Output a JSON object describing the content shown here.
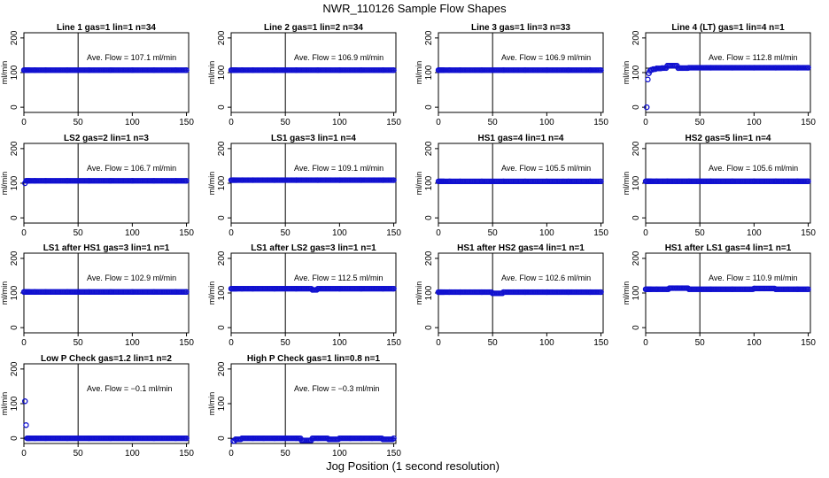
{
  "figure": {
    "title": "NWR_110126  Sample Flow Shapes",
    "xlabel": "Jog Position (1 second resolution)"
  },
  "chart_data": [
    {
      "type": "scatter",
      "title": "Line 1 gas=1 lin=1 n=34",
      "ylabel": "ml/min",
      "xticks": [
        0,
        50,
        100,
        150
      ],
      "yticks": [
        0,
        100,
        200
      ],
      "xlim": [
        0,
        152
      ],
      "ylim": [
        -15,
        215
      ],
      "vline": 50,
      "hline": 107.1,
      "annotation": "Ave. Flow =  107.1  ml/min",
      "series": [
        {
          "name": "",
          "x": [
            0,
            1,
            2,
            3,
            4,
            5,
            10,
            20,
            40,
            60,
            80,
            100,
            120,
            140,
            150
          ],
          "y": [
            107,
            107,
            107,
            107,
            107,
            107,
            107,
            107,
            107,
            107,
            107,
            107,
            107,
            107,
            107
          ]
        }
      ]
    },
    {
      "type": "scatter",
      "title": "Line 2 gas=1 lin=2 n=34",
      "ylabel": "ml/min",
      "xticks": [
        0,
        50,
        100,
        150
      ],
      "yticks": [
        0,
        100,
        200
      ],
      "xlim": [
        0,
        152
      ],
      "ylim": [
        -15,
        215
      ],
      "vline": 50,
      "hline": 106.9,
      "annotation": "Ave. Flow =  106.9  ml/min",
      "series": [
        {
          "name": "",
          "x": [
            0,
            1,
            2,
            3,
            4,
            5,
            10,
            20,
            40,
            60,
            80,
            100,
            120,
            140,
            150
          ],
          "y": [
            107,
            107,
            107,
            107,
            107,
            107,
            107,
            107,
            107,
            107,
            107,
            107,
            107,
            107,
            107
          ]
        }
      ]
    },
    {
      "type": "scatter",
      "title": "Line 3 gas=1 lin=3 n=33",
      "ylabel": "ml/min",
      "xticks": [
        0,
        50,
        100,
        150
      ],
      "yticks": [
        0,
        100,
        200
      ],
      "xlim": [
        0,
        152
      ],
      "ylim": [
        -15,
        215
      ],
      "vline": 50,
      "hline": 106.9,
      "annotation": "Ave. Flow =  106.9  ml/min",
      "series": [
        {
          "name": "",
          "x": [
            0,
            1,
            2,
            3,
            4,
            5,
            10,
            20,
            40,
            60,
            80,
            100,
            120,
            140,
            150
          ],
          "y": [
            107,
            107,
            107,
            107,
            107,
            107,
            107,
            107,
            107,
            107,
            107,
            107,
            107,
            107,
            107
          ]
        }
      ]
    },
    {
      "type": "scatter",
      "title": "Line 4 (LT) gas=1 lin=4 n=1",
      "ylabel": "ml/min",
      "xticks": [
        0,
        50,
        100,
        150
      ],
      "yticks": [
        0,
        100,
        200
      ],
      "xlim": [
        0,
        152
      ],
      "ylim": [
        -15,
        215
      ],
      "vline": 50,
      "hline": 112.8,
      "annotation": "Ave. Flow =  112.8  ml/min",
      "series": [
        {
          "name": "",
          "x": [
            1,
            2,
            3,
            4,
            5,
            7,
            10,
            15,
            20,
            30,
            40,
            60,
            80,
            100,
            120,
            140,
            150
          ],
          "y": [
            0,
            80,
            98,
            105,
            108,
            110,
            112,
            113,
            120,
            113,
            114,
            114,
            114,
            114,
            114,
            114,
            114
          ]
        }
      ]
    },
    {
      "type": "scatter",
      "title": "LS2 gas=2 lin=1 n=3",
      "ylabel": "ml/min",
      "xticks": [
        0,
        50,
        100,
        150
      ],
      "yticks": [
        0,
        100,
        200
      ],
      "xlim": [
        0,
        152
      ],
      "ylim": [
        -15,
        215
      ],
      "vline": 50,
      "hline": 106.7,
      "annotation": "Ave. Flow =  106.7  ml/min",
      "series": [
        {
          "name": "",
          "x": [
            1,
            2,
            3,
            4,
            5,
            10,
            20,
            40,
            60,
            80,
            100,
            120,
            140,
            150
          ],
          "y": [
            100,
            107,
            107,
            107,
            107,
            107,
            107,
            107,
            107,
            107,
            107,
            107,
            107,
            107
          ]
        }
      ]
    },
    {
      "type": "scatter",
      "title": "LS1 gas=3 lin=1 n=4",
      "ylabel": "ml/min",
      "xticks": [
        0,
        50,
        100,
        150
      ],
      "yticks": [
        0,
        100,
        200
      ],
      "xlim": [
        0,
        152
      ],
      "ylim": [
        -15,
        215
      ],
      "vline": 50,
      "hline": 109.1,
      "annotation": "Ave. Flow =  109.1  ml/min",
      "series": [
        {
          "name": "",
          "x": [
            0,
            1,
            2,
            3,
            4,
            5,
            10,
            20,
            40,
            60,
            80,
            100,
            120,
            140,
            150
          ],
          "y": [
            109,
            109,
            109,
            109,
            109,
            109,
            109,
            109,
            109,
            109,
            109,
            109,
            109,
            109,
            109
          ]
        }
      ]
    },
    {
      "type": "scatter",
      "title": "HS1 gas=4 lin=1 n=4",
      "ylabel": "ml/min",
      "xticks": [
        0,
        50,
        100,
        150
      ],
      "yticks": [
        0,
        100,
        200
      ],
      "xlim": [
        0,
        152
      ],
      "ylim": [
        -15,
        215
      ],
      "vline": 50,
      "hline": 105.5,
      "annotation": "Ave. Flow =  105.5  ml/min",
      "series": [
        {
          "name": "",
          "x": [
            0,
            1,
            2,
            3,
            4,
            5,
            10,
            20,
            40,
            60,
            80,
            100,
            120,
            140,
            150
          ],
          "y": [
            105.5,
            105.5,
            105.5,
            105.5,
            105.5,
            105.5,
            105.5,
            105.5,
            105.5,
            105.5,
            105.5,
            105.5,
            105.5,
            105.5,
            105.5
          ]
        }
      ]
    },
    {
      "type": "scatter",
      "title": "HS2 gas=5 lin=1 n=4",
      "ylabel": "ml/min",
      "xticks": [
        0,
        50,
        100,
        150
      ],
      "yticks": [
        0,
        100,
        200
      ],
      "xlim": [
        0,
        152
      ],
      "ylim": [
        -15,
        215
      ],
      "vline": 50,
      "hline": 105.6,
      "annotation": "Ave. Flow =  105.6  ml/min",
      "series": [
        {
          "name": "",
          "x": [
            0,
            1,
            2,
            3,
            4,
            5,
            10,
            20,
            40,
            60,
            80,
            100,
            120,
            140,
            150
          ],
          "y": [
            105.6,
            105.6,
            105.6,
            105.6,
            105.6,
            105.6,
            105.6,
            105.6,
            105.6,
            105.6,
            105.6,
            105.6,
            105.6,
            105.6,
            105.6
          ]
        }
      ]
    },
    {
      "type": "scatter",
      "title": "LS1 after HS1 gas=3 lin=1 n=1",
      "ylabel": "ml/min",
      "xticks": [
        0,
        50,
        100,
        150
      ],
      "yticks": [
        0,
        100,
        200
      ],
      "xlim": [
        0,
        152
      ],
      "ylim": [
        -15,
        215
      ],
      "vline": 50,
      "hline": 102.9,
      "annotation": "Ave. Flow =  102.9  ml/min",
      "series": [
        {
          "name": "",
          "x": [
            0,
            1,
            2,
            3,
            4,
            5,
            10,
            20,
            40,
            60,
            80,
            100,
            120,
            140,
            150
          ],
          "y": [
            103,
            103,
            103,
            103,
            103,
            103,
            103,
            103,
            103,
            103,
            103,
            103,
            103,
            103,
            103
          ]
        }
      ]
    },
    {
      "type": "scatter",
      "title": "LS1 after LS2 gas=3 lin=1 n=1",
      "ylabel": "ml/min",
      "xticks": [
        0,
        50,
        100,
        150
      ],
      "yticks": [
        0,
        100,
        200
      ],
      "xlim": [
        0,
        152
      ],
      "ylim": [
        -15,
        215
      ],
      "vline": 50,
      "hline": 112.5,
      "annotation": "Ave. Flow =  112.5  ml/min",
      "series": [
        {
          "name": "",
          "x": [
            0,
            1,
            2,
            3,
            4,
            5,
            10,
            20,
            40,
            60,
            75,
            80,
            100,
            120,
            140,
            150
          ],
          "y": [
            112.5,
            112.5,
            112.5,
            112.5,
            112.5,
            112.5,
            112.5,
            112.5,
            112.5,
            112.5,
            109,
            112.5,
            112.5,
            112.5,
            112.5,
            112.5
          ]
        }
      ]
    },
    {
      "type": "scatter",
      "title": "HS1 after HS2 gas=4 lin=1 n=1",
      "ylabel": "ml/min",
      "xticks": [
        0,
        50,
        100,
        150
      ],
      "yticks": [
        0,
        100,
        200
      ],
      "xlim": [
        0,
        152
      ],
      "ylim": [
        -15,
        215
      ],
      "vline": 50,
      "hline": 102.6,
      "annotation": "Ave. Flow =  102.6  ml/min",
      "series": [
        {
          "name": "",
          "x": [
            0,
            1,
            2,
            3,
            4,
            5,
            10,
            20,
            40,
            50,
            60,
            80,
            100,
            120,
            140,
            150
          ],
          "y": [
            102.6,
            102.6,
            102.6,
            102.6,
            102.6,
            102.6,
            102.6,
            102.6,
            102.6,
            99,
            102.6,
            102.6,
            102.6,
            102.6,
            102.6,
            102.6
          ]
        }
      ]
    },
    {
      "type": "scatter",
      "title": "HS1 after LS1 gas=4 lin=1 n=1",
      "ylabel": "ml/min",
      "xticks": [
        0,
        50,
        100,
        150
      ],
      "yticks": [
        0,
        100,
        200
      ],
      "xlim": [
        0,
        152
      ],
      "ylim": [
        -15,
        215
      ],
      "vline": 50,
      "hline": 110.9,
      "annotation": "Ave. Flow =  110.9  ml/min",
      "series": [
        {
          "name": "",
          "x": [
            0,
            1,
            2,
            3,
            4,
            5,
            10,
            20,
            22,
            40,
            60,
            80,
            100,
            120,
            140,
            150
          ],
          "y": [
            110.9,
            110.9,
            110.9,
            110.9,
            110.9,
            110.9,
            110.9,
            110.9,
            114,
            110.9,
            110.9,
            110.9,
            113,
            110.9,
            110.9,
            110.9
          ]
        }
      ]
    },
    {
      "type": "scatter",
      "title": "Low P Check gas=1.2 lin=1 n=2",
      "ylabel": "ml/min",
      "xticks": [
        0,
        50,
        100,
        150
      ],
      "yticks": [
        0,
        100,
        200
      ],
      "xlim": [
        0,
        152
      ],
      "ylim": [
        -15,
        215
      ],
      "vline": 50,
      "hline": -0.1,
      "annotation": "Ave. Flow =  −0.1  ml/min",
      "series": [
        {
          "name": "",
          "x": [
            1,
            2,
            3,
            4,
            5,
            10,
            20,
            40,
            60,
            80,
            100,
            120,
            140,
            150
          ],
          "y": [
            107,
            38,
            0,
            0,
            0,
            0,
            0,
            0,
            0,
            0,
            0,
            0,
            0,
            0
          ]
        }
      ]
    },
    {
      "type": "scatter",
      "title": "High P Check gas=1 lin=0.8 n=1",
      "ylabel": "ml/min",
      "xticks": [
        0,
        50,
        100,
        150
      ],
      "yticks": [
        0,
        100,
        200
      ],
      "xlim": [
        0,
        152
      ],
      "ylim": [
        -15,
        215
      ],
      "vline": 50,
      "hline": -0.3,
      "annotation": "Ave. Flow =  −0.3  ml/min",
      "series": [
        {
          "name": "",
          "x": [
            2,
            4,
            10,
            20,
            30,
            40,
            50,
            60,
            65,
            75,
            80,
            90,
            100,
            110,
            120,
            130,
            140,
            150
          ],
          "y": [
            -8,
            -3,
            0,
            0,
            0,
            0,
            0,
            0,
            -6,
            0,
            0,
            -3,
            0,
            0,
            0,
            0,
            -3,
            0
          ]
        }
      ]
    }
  ]
}
